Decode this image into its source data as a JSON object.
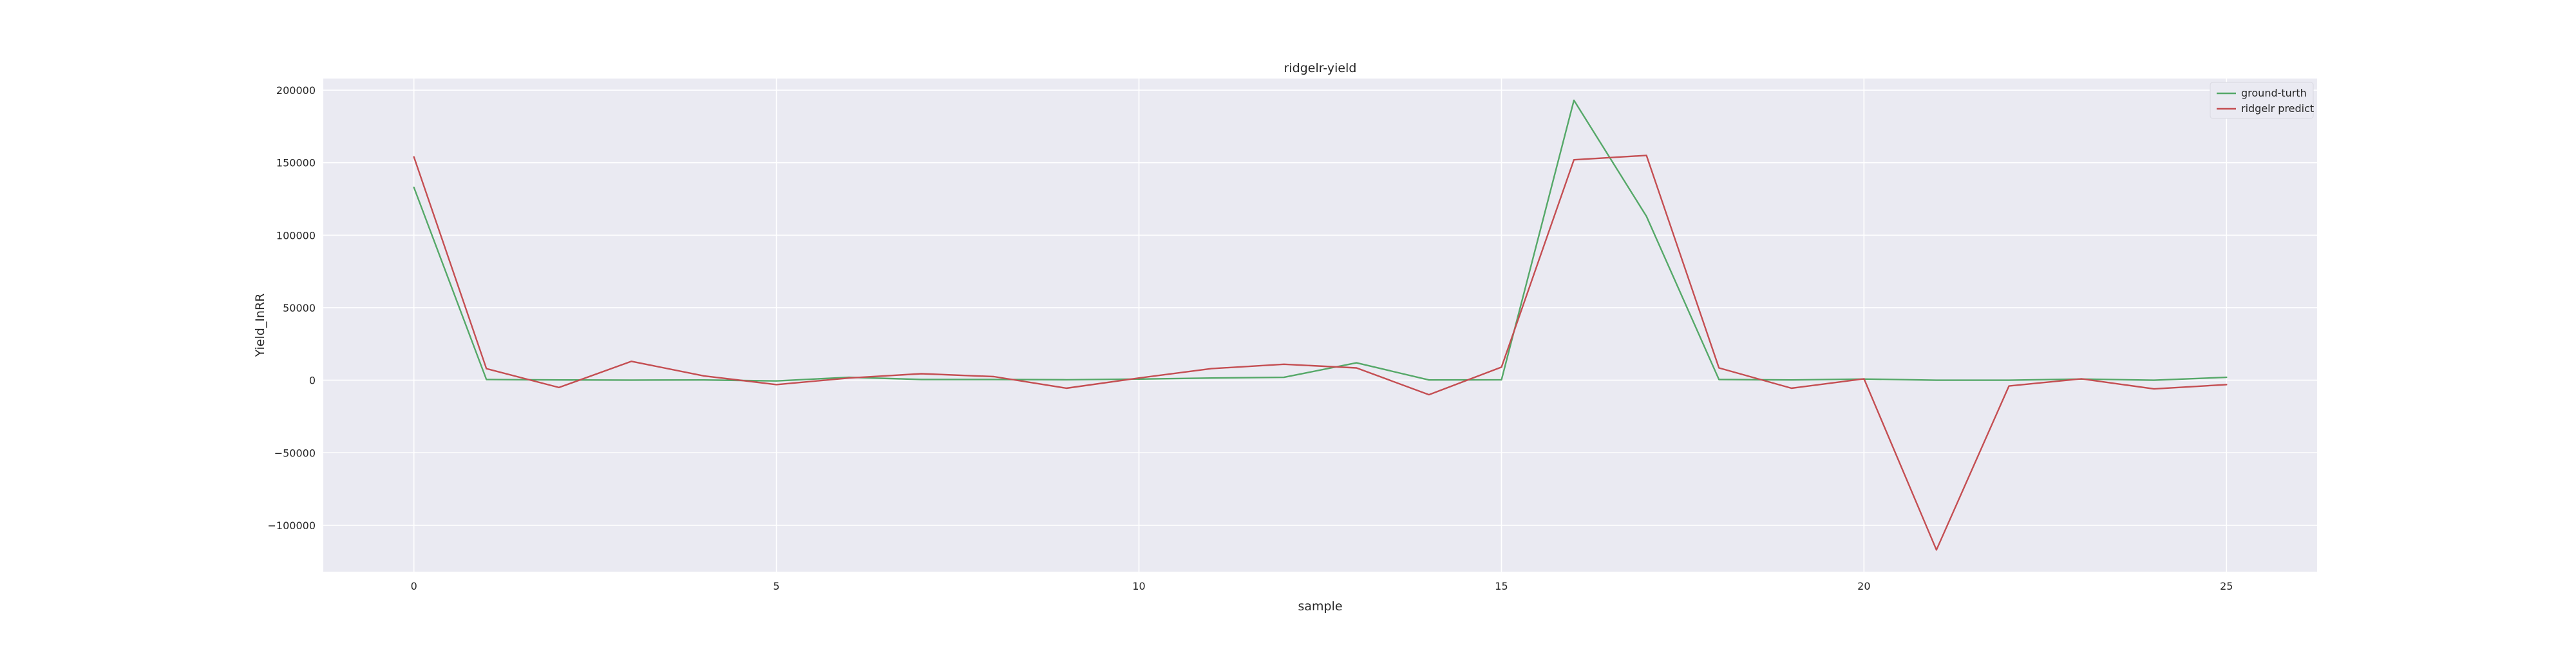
{
  "colors": {
    "plot_background": "#eaeaf2",
    "grid": "#ffffff",
    "ground_truth": "#55a868",
    "ridgelr_predict": "#c44e52"
  },
  "chart_data": {
    "type": "line",
    "title": "ridgelr-yield",
    "xlabel": "sample",
    "ylabel": "Yield_InRR",
    "xlim": [
      -1.25,
      26.25
    ],
    "ylim": [
      -132000,
      208000
    ],
    "grid": true,
    "legend_position": "top-right",
    "x_ticks": [
      0,
      5,
      10,
      15,
      20,
      25
    ],
    "x_tick_labels": [
      "0",
      "5",
      "10",
      "15",
      "20",
      "25"
    ],
    "y_ticks": [
      200000,
      150000,
      100000,
      50000,
      0,
      -50000,
      -100000
    ],
    "y_tick_labels": [
      "200000",
      "150000",
      "100000",
      "50000",
      "0",
      "−50000",
      "−100000"
    ],
    "x": [
      0,
      1,
      2,
      3,
      4,
      5,
      6,
      7,
      8,
      9,
      10,
      11,
      12,
      13,
      14,
      15,
      16,
      17,
      18,
      19,
      20,
      21,
      22,
      23,
      24,
      25
    ],
    "series": [
      {
        "name": "ground-turth",
        "color": "#55a868",
        "values": [
          133000,
          500,
          200,
          100,
          200,
          -500,
          2000,
          500,
          500,
          300,
          800,
          1500,
          2000,
          12000,
          200,
          300,
          193000,
          113000,
          500,
          200,
          800,
          0,
          0,
          800,
          0,
          2000
        ]
      },
      {
        "name": "ridgelr predict",
        "color": "#c44e52",
        "values": [
          154000,
          8000,
          -5000,
          13000,
          3000,
          -3000,
          1500,
          4500,
          2500,
          -5500,
          1500,
          8000,
          11000,
          8500,
          -10000,
          9000,
          152000,
          155000,
          8500,
          -5500,
          1000,
          -117000,
          -4000,
          1000,
          -6000,
          -3000
        ]
      }
    ]
  }
}
